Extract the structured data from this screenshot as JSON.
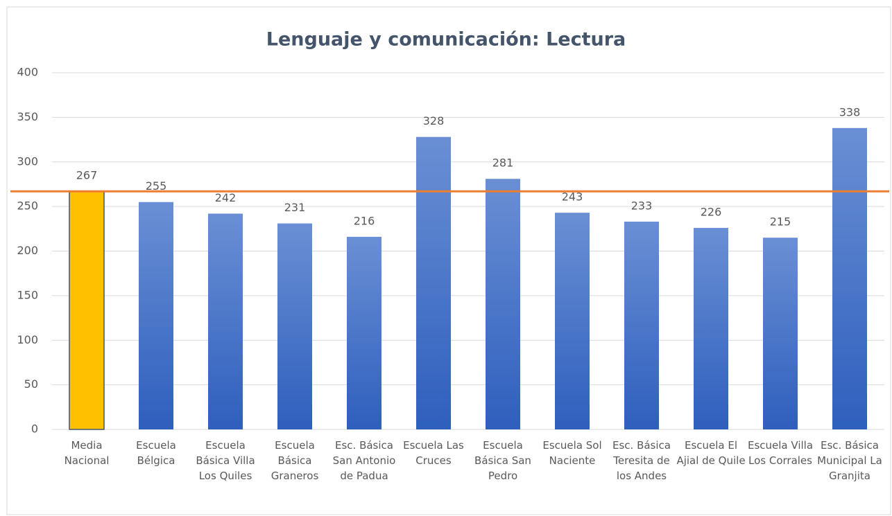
{
  "chart_data": {
    "type": "bar",
    "title": "Lenguaje y comunicación: Lectura",
    "categories": [
      "Media Nacional",
      "Escuela Bélgica",
      "Escuela Básica Villa Los Quiles",
      "Escuela Básica Graneros",
      "Esc. Básica San Antonio de Padua",
      "Escuela Las Cruces",
      "Escuela Básica San Pedro",
      "Escuela Sol Naciente",
      "Esc. Básica Teresita de los Andes",
      "Escuela El Ajial de Quile",
      "Escuela Villa Los Corrales",
      "Esc. Básica Municipal La Granjita"
    ],
    "values": [
      267,
      255,
      242,
      231,
      216,
      328,
      281,
      243,
      233,
      226,
      215,
      338
    ],
    "colors": [
      "#ffc000",
      "#4472c4",
      "#4472c4",
      "#4472c4",
      "#4472c4",
      "#4472c4",
      "#4472c4",
      "#4472c4",
      "#4472c4",
      "#4472c4",
      "#4472c4",
      "#4472c4"
    ],
    "reference_line": {
      "value": 267,
      "color": "#ed7d31"
    },
    "ylim": [
      0,
      400
    ],
    "yticks": [
      0,
      50,
      100,
      150,
      200,
      250,
      300,
      350,
      400
    ],
    "grid": true
  }
}
